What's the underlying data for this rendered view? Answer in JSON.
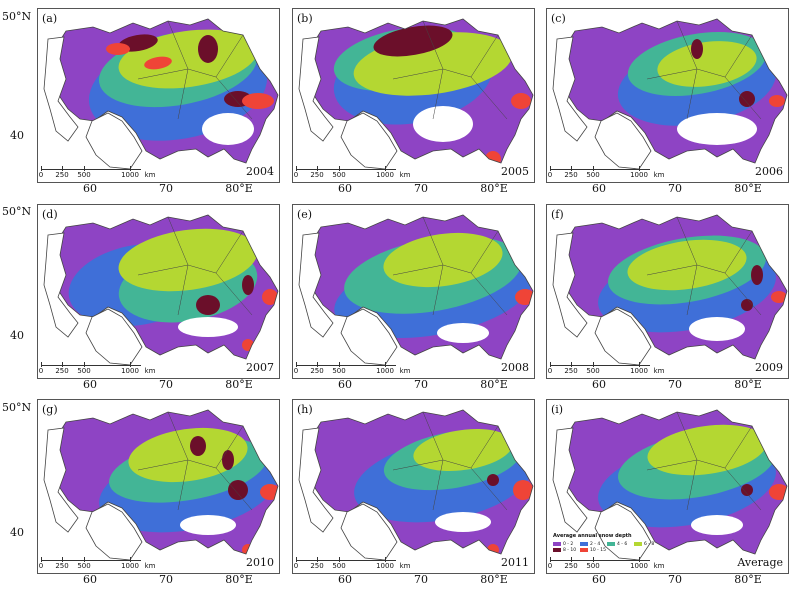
{
  "lat_labels": [
    "50°N",
    "40",
    "50°N",
    "40",
    "50°N",
    "40"
  ],
  "lon_labels": [
    "60",
    "70",
    "80°E"
  ],
  "panels": [
    {
      "label": "(a)",
      "year": "2004"
    },
    {
      "label": "(b)",
      "year": "2005"
    },
    {
      "label": "(c)",
      "year": "2006"
    },
    {
      "label": "(d)",
      "year": "2007"
    },
    {
      "label": "(e)",
      "year": "2008"
    },
    {
      "label": "(f)",
      "year": "2009"
    },
    {
      "label": "(g)",
      "year": "2010"
    },
    {
      "label": "(h)",
      "year": "2011"
    },
    {
      "label": "(i)",
      "year": "Average"
    }
  ],
  "scale_bar": {
    "ticks": [
      "0",
      "250",
      "500",
      "1000"
    ],
    "unit": "km"
  },
  "legend": {
    "title": "Average annual snow depth",
    "classes": [
      {
        "label": "0 - 2",
        "color": "#8e44c4"
      },
      {
        "label": "2 - 4",
        "color": "#3f6fd8"
      },
      {
        "label": "4 - 6",
        "color": "#43b596"
      },
      {
        "label": "6 - 8",
        "color": "#b4d732"
      },
      {
        "label": "8 - 10",
        "color": "#6b0f2a"
      },
      {
        "label": "10 - 15",
        "color": "#ef4437"
      }
    ]
  },
  "colors": {
    "purple": "#8e44c4",
    "blue": "#3f6fd8",
    "teal": "#43b596",
    "lime": "#b4d732",
    "maroon": "#6b0f2a",
    "red": "#ef4437",
    "outline": "#444444"
  }
}
